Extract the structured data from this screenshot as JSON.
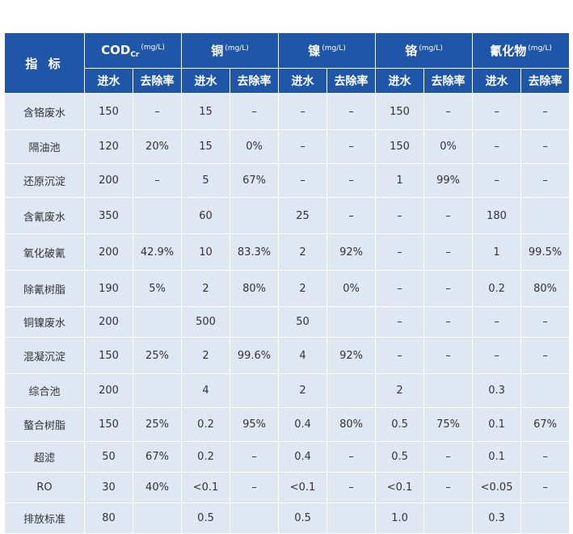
{
  "table": {
    "index_header": "指 标",
    "groups": [
      {
        "name": "COD",
        "sub": "Cr",
        "unit": "(mg/L)"
      },
      {
        "name": "铜",
        "sub": "",
        "unit": "(mg/L)"
      },
      {
        "name": "镍",
        "sub": "",
        "unit": "(mg/L)"
      },
      {
        "name": "铬",
        "sub": "",
        "unit": "(mg/L)"
      },
      {
        "name": "氰化物",
        "sub": "",
        "unit": "(mg/L)"
      }
    ],
    "subheaders": [
      "进水",
      "去除率",
      "进水",
      "去除率",
      "进水",
      "去除率",
      "进水",
      "去除率",
      "进水",
      "去除率"
    ],
    "rows": [
      {
        "label": "含铬废水",
        "cells": [
          "150",
          "–",
          "15",
          "–",
          "–",
          "–",
          "150",
          "–",
          "–",
          "–"
        ]
      },
      {
        "label": "隔油池",
        "cells": [
          "120",
          "20%",
          "15",
          "0%",
          "–",
          "–",
          "150",
          "0%",
          "–",
          "–"
        ]
      },
      {
        "label": "还原沉淀",
        "cells": [
          "200",
          "–",
          "5",
          "67%",
          "–",
          "–",
          "1",
          "99%",
          "–",
          "–"
        ]
      },
      {
        "label": "含氰废水",
        "cells": [
          "350",
          "",
          "60",
          "",
          "25",
          "–",
          "–",
          "–",
          "180",
          ""
        ]
      },
      {
        "label": "氧化破氰",
        "cells": [
          "200",
          "42.9%",
          "10",
          "83.3%",
          "2",
          "92%",
          "–",
          "–",
          "1",
          "99.5%"
        ]
      },
      {
        "label": "除氰树脂",
        "cells": [
          "190",
          "5%",
          "2",
          "80%",
          "2",
          "0%",
          "–",
          "–",
          "0.2",
          "80%"
        ]
      },
      {
        "label": "铜镍废水",
        "cells": [
          "200",
          "",
          "500",
          "",
          "50",
          "",
          "–",
          "–",
          "–",
          "–"
        ]
      },
      {
        "label": "混凝沉淀",
        "cells": [
          "150",
          "25%",
          "2",
          "99.6%",
          "4",
          "92%",
          "–",
          "–",
          "–",
          "–"
        ]
      },
      {
        "label": "综合池",
        "cells": [
          "200",
          "",
          "4",
          "",
          "2",
          "",
          "2",
          "",
          "0.3",
          ""
        ]
      },
      {
        "label": "螯合树脂",
        "cells": [
          "150",
          "25%",
          "0.2",
          "95%",
          "0.4",
          "80%",
          "0.5",
          "75%",
          "0.1",
          "67%"
        ]
      },
      {
        "label": "超滤",
        "cells": [
          "50",
          "67%",
          "0.2",
          "–",
          "0.4",
          "–",
          "0.5",
          "–",
          "0.1",
          "–"
        ]
      },
      {
        "label": "RO",
        "cells": [
          "30",
          "40%",
          "<0.1",
          "–",
          "<0.1",
          "–",
          "<0.1",
          "–",
          "<0.05",
          "–"
        ]
      },
      {
        "label": "排放标准",
        "cells": [
          "80",
          "",
          "0.5",
          "",
          "0.5",
          "",
          "1.0",
          "",
          "0.3",
          ""
        ]
      }
    ]
  },
  "colors": {
    "header_bg": "#2056a8",
    "header_text": "#ffffff",
    "cell_bg": "#dfe7f3",
    "cell_text": "#333333",
    "grid": "#ffffff"
  }
}
